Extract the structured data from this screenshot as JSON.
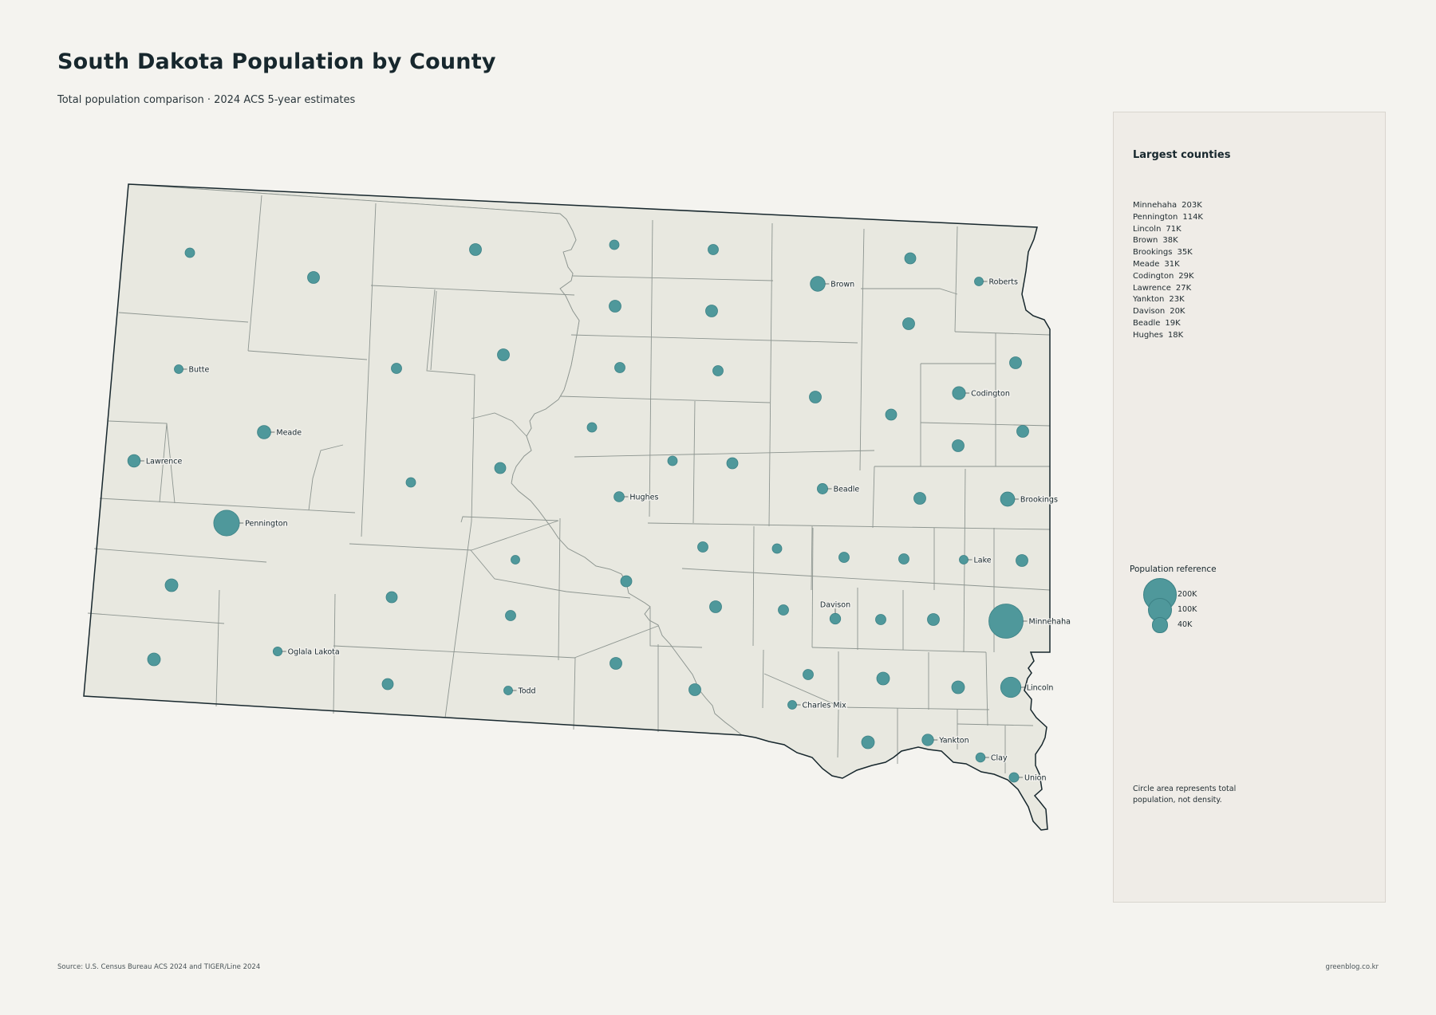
{
  "title": "South Dakota Population by County",
  "subtitle": "Total population comparison · 2024 ACS 5-year estimates",
  "side_panel": {
    "heading": "Largest counties",
    "ranking": [
      {
        "name": "Minnehaha",
        "value": "203K"
      },
      {
        "name": "Pennington",
        "value": "114K"
      },
      {
        "name": "Lincoln",
        "value": "71K"
      },
      {
        "name": "Brown",
        "value": "38K"
      },
      {
        "name": "Brookings",
        "value": "35K"
      },
      {
        "name": "Meade",
        "value": "31K"
      },
      {
        "name": "Codington",
        "value": "29K"
      },
      {
        "name": "Lawrence",
        "value": "27K"
      },
      {
        "name": "Yankton",
        "value": "23K"
      },
      {
        "name": "Davison",
        "value": "20K"
      },
      {
        "name": "Beadle",
        "value": "19K"
      },
      {
        "name": "Hughes",
        "value": "18K"
      }
    ],
    "legend_title": "Population reference",
    "legend": [
      {
        "label": "200K",
        "population": 200000
      },
      {
        "label": "100K",
        "population": 100000
      },
      {
        "label": "40K",
        "population": 40000
      }
    ],
    "note": "Circle area represents total population, not density."
  },
  "source": "Source: U.S. Census Bureau ACS 2024 and TIGER/Line 2024",
  "credit": "greenblog.co.kr",
  "colors": {
    "background": "#f4f3ef",
    "land": "#e8e8e0",
    "county_border": "#8d9590",
    "state_border": "#17272d",
    "bubble_fill": "#4f989b",
    "bubble_stroke": "#3c8185",
    "panel": "#efece7"
  },
  "map": {
    "labeled_counties": [
      {
        "name": "Minnehaha",
        "population": 203000
      },
      {
        "name": "Pennington",
        "population": 114000
      },
      {
        "name": "Lincoln",
        "population": 71000
      },
      {
        "name": "Brown",
        "population": 38000
      },
      {
        "name": "Brookings",
        "population": 35000
      },
      {
        "name": "Meade",
        "population": 31000
      },
      {
        "name": "Codington",
        "population": 29000
      },
      {
        "name": "Lawrence",
        "population": 27000
      },
      {
        "name": "Yankton",
        "population": 23000
      },
      {
        "name": "Davison",
        "population": 20000
      },
      {
        "name": "Beadle",
        "population": 19000
      },
      {
        "name": "Hughes",
        "population": 18000
      },
      {
        "name": "Oglala Lakota",
        "population": 14000
      },
      {
        "name": "Clay",
        "population": 15000
      },
      {
        "name": "Union",
        "population": 16000
      },
      {
        "name": "Lake",
        "population": 11000
      },
      {
        "name": "Butte",
        "population": 10000
      },
      {
        "name": "Roberts",
        "population": 10000
      },
      {
        "name": "Todd",
        "population": 9500
      },
      {
        "name": "Charles Mix",
        "population": 9300
      }
    ]
  }
}
